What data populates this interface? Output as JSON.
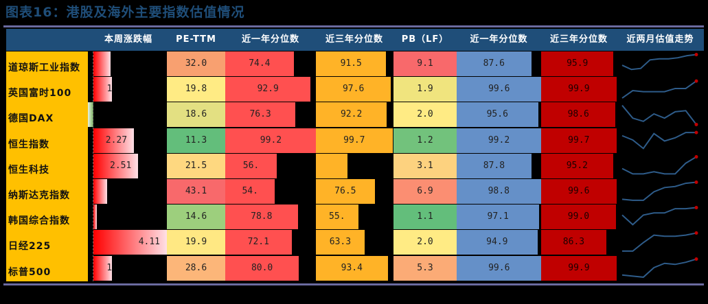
{
  "title": "图表16：港股及海外主要指数估值情况",
  "colors": {
    "header_bg": "#1f4e79",
    "name_bg": "#ffc000",
    "pct1y_pe": "#ff5050",
    "pct3y_pe": "#ffb327",
    "pct1y_pb": "#6590c8",
    "pct3y_pb": "#c00000",
    "spark_line": "#2e5c8a",
    "spark_dot": "#c00000"
  },
  "header": {
    "weekly_change": "本周涨跌幅",
    "pe_ttm": "PE-TTM",
    "pe_pct_1y": "近一年分位数",
    "pe_pct_3y": "近三年分位数",
    "pb_lf": "PB（LF）",
    "pb_pct_1y": "近一年分位数",
    "pb_pct_3y": "近三年分位数",
    "trend": "近两月估值走势"
  },
  "rows": [
    {
      "name": "道琼斯工业指数",
      "weekly": "",
      "weekly_val": 0.95,
      "pe": "32.0",
      "pe_color": "#f8a070",
      "pe1": "74.4",
      "pe3": "91.5",
      "pb": "9.1",
      "pb_color": "#f8696b",
      "pb1": "87.6",
      "pb3": "95.9",
      "spark": [
        0.55,
        0.75,
        0.7,
        0.3,
        0.25,
        0.25,
        0.2,
        0.1,
        0.05
      ]
    },
    {
      "name": "英国富时100",
      "weekly": "1",
      "weekly_val": 1.05,
      "pe": "19.8",
      "pe_color": "#ffeb84",
      "pe1": "92.9",
      "pe3": "97.6",
      "pb": "1.9",
      "pb_color": "#f0e47e",
      "pb1": "99.6",
      "pb3": "99.9",
      "spark": [
        0.9,
        0.55,
        0.6,
        0.6,
        0.6,
        0.45,
        0.45,
        0.1
      ]
    },
    {
      "name": "德国DAX",
      "weekly": "",
      "weekly_val": -0.08,
      "pe": "18.6",
      "pe_color": "#e3e082",
      "pe1": "76.3",
      "pe3": "92.2",
      "pb": "2.0",
      "pb_color": "#ffeb84",
      "pb1": "95.6",
      "pb3": "98.6",
      "spark": [
        0.05,
        0.65,
        0.8,
        0.45,
        0.65,
        0.35,
        0.3,
        0.95
      ]
    },
    {
      "name": "恒生指数",
      "weekly": "2.27",
      "weekly_val": 2.27,
      "pe": "11.3",
      "pe_color": "#63be7b",
      "pe1": "99.2",
      "pe3": "99.7",
      "pb": "1.2",
      "pb_color": "#72c27c",
      "pb1": "99.2",
      "pb3": "99.7",
      "spark": [
        0.25,
        0.45,
        0.85,
        0.15,
        0.5,
        0.35,
        0.1,
        0.1
      ]
    },
    {
      "name": "恒生科技",
      "weekly": "2.51",
      "weekly_val": 2.51,
      "pe": "21.5",
      "pe_color": "#fed880",
      "pe1": "56.",
      "pe3": "",
      "pe3_val": 40.8,
      "pb": "3.1",
      "pb_color": "#fdd27f",
      "pb1": "87.8",
      "pb3": "95.2",
      "spark": [
        0.6,
        0.85,
        0.85,
        0.75,
        0.85,
        0.85,
        0.35,
        0.05
      ]
    },
    {
      "name": "纳斯达克指数",
      "weekly": "",
      "weekly_val": 0.75,
      "pe": "43.1",
      "pe_color": "#f8696b",
      "pe1": "54.",
      "pe3": "76.5",
      "pb": "6.9",
      "pb_color": "#fb8e72",
      "pb1": "98.8",
      "pb3": "99.6",
      "spark": [
        0.85,
        0.9,
        0.9,
        0.5,
        0.3,
        0.25,
        0.1,
        0.05
      ]
    },
    {
      "name": "韩国综合指数",
      "weekly": "",
      "weekly_val": 0.2,
      "pe": "14.6",
      "pe_color": "#9dcf7d",
      "pe1": "78.8",
      "pe3": "55.",
      "pb": "1.1",
      "pb_color": "#63be7b",
      "pb1": "97.1",
      "pb3": "99.0",
      "spark": [
        0.4,
        0.85,
        0.4,
        0.3,
        0.3,
        0.1,
        0.1,
        0.05
      ]
    },
    {
      "name": "日经225",
      "weekly": "4.11",
      "weekly_val": 4.11,
      "pe": "19.9",
      "pe_color": "#ffe883",
      "pe1": "72.1",
      "pe3": "63.3",
      "pb": "2.0",
      "pb_color": "#ffeb84",
      "pb1": "94.9",
      "pb3": "86.3",
      "spark": [
        0.9,
        0.9,
        0.5,
        0.15,
        0.2,
        0.2,
        0.15,
        0.05
      ]
    },
    {
      "name": "标普500",
      "weekly": "1",
      "weekly_val": 1.04,
      "pe": "28.6",
      "pe_color": "#fcb679",
      "pe1": "80.0",
      "pe3": "93.4",
      "pb": "5.3",
      "pb_color": "#fbab76",
      "pb1": "99.6",
      "pb3": "99.9",
      "spark": [
        0.8,
        0.85,
        0.9,
        0.45,
        0.25,
        0.3,
        0.2,
        0.05
      ]
    }
  ],
  "chart_data": {
    "type": "table",
    "title": "图表16：港股及海外主要指数估值情况",
    "columns": [
      "指数",
      "本周涨跌幅",
      "PE-TTM",
      "PE近一年分位数",
      "PE近三年分位数",
      "PB（LF）",
      "PB近一年分位数",
      "PB近三年分位数",
      "近两月估值走势"
    ],
    "rows": [
      [
        "道琼斯工业指数",
        null,
        32.0,
        74.4,
        91.5,
        9.1,
        87.6,
        95.9,
        "sparkline"
      ],
      [
        "英国富时100",
        null,
        19.8,
        92.9,
        97.6,
        1.9,
        99.6,
        99.9,
        "sparkline"
      ],
      [
        "德国DAX",
        null,
        18.6,
        76.3,
        92.2,
        2.0,
        95.6,
        98.6,
        "sparkline"
      ],
      [
        "恒生指数",
        2.27,
        11.3,
        99.2,
        99.7,
        1.2,
        99.2,
        99.7,
        "sparkline"
      ],
      [
        "恒生科技",
        2.51,
        21.5,
        56.0,
        null,
        3.1,
        87.8,
        95.2,
        "sparkline"
      ],
      [
        "纳斯达克指数",
        null,
        43.1,
        54.0,
        76.5,
        6.9,
        98.8,
        99.6,
        "sparkline"
      ],
      [
        "韩国综合指数",
        null,
        14.6,
        78.8,
        55.0,
        1.1,
        97.1,
        99.0,
        "sparkline"
      ],
      [
        "日经225",
        4.11,
        19.9,
        72.1,
        63.3,
        2.0,
        94.9,
        86.3,
        "sparkline"
      ],
      [
        "标普500",
        null,
        28.6,
        80.0,
        93.4,
        5.3,
        99.6,
        99.9,
        "sparkline"
      ]
    ]
  }
}
